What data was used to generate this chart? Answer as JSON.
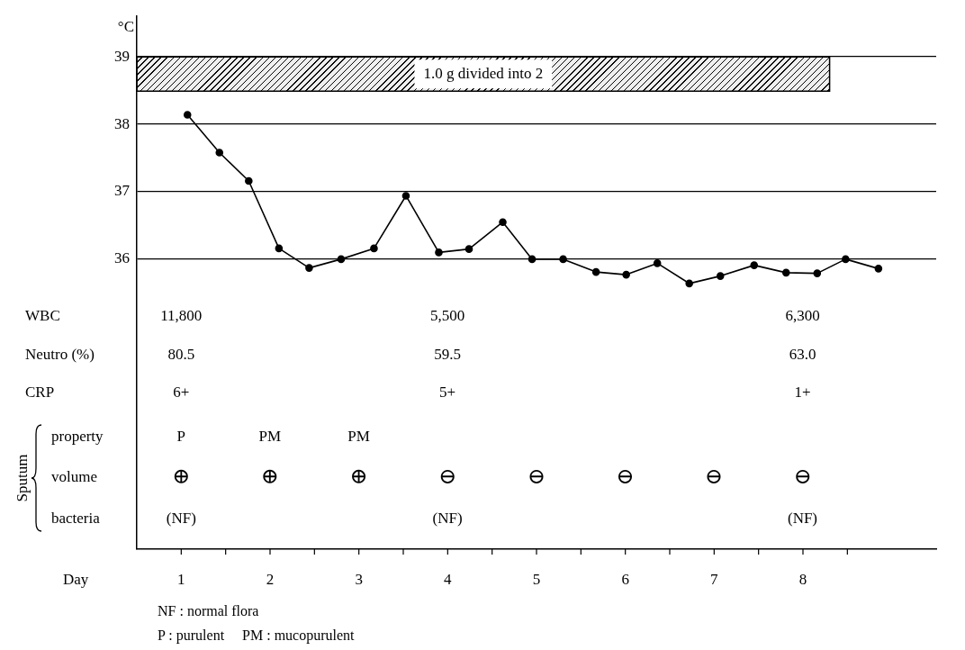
{
  "chart_data": {
    "type": "line",
    "xlabel": "Day",
    "ylabel": "°C",
    "x": [
      1.07,
      1.43,
      1.76,
      2.1,
      2.44,
      2.8,
      3.17,
      3.53,
      3.9,
      4.24,
      4.62,
      4.95,
      5.3,
      5.67,
      6.01,
      6.36,
      6.72,
      7.07,
      7.45,
      7.81,
      8.16,
      8.48,
      8.85
    ],
    "series": [
      {
        "color": "#000000",
        "values": [
          38.14,
          37.58,
          37.16,
          36.16,
          35.87,
          36.0,
          36.16,
          36.94,
          36.1,
          36.15,
          36.55,
          36.0,
          36.0,
          35.81,
          35.77,
          35.94,
          35.64,
          35.75,
          35.91,
          35.8,
          35.79,
          36.0,
          35.86
        ]
      }
    ],
    "xlim": [
      0.5,
      9.5
    ],
    "xticks": [
      1,
      {
        "value": 1.5,
        "label": null
      },
      2,
      {
        "value": 2.5,
        "label": null
      },
      3,
      {
        "value": 3.5,
        "label": null
      },
      4,
      {
        "value": 4.5,
        "label": null
      },
      5,
      {
        "value": 5.5,
        "label": null
      },
      6,
      {
        "value": 6.5,
        "label": null
      },
      7,
      {
        "value": 7.5,
        "label": null
      },
      8,
      {
        "value": 8.5,
        "label": null
      }
    ],
    "ylim": [
      31.7,
      39.6
    ],
    "yticks": [
      36,
      37,
      38,
      39
    ],
    "grid": "y",
    "legend": false,
    "marker": "circle",
    "line_style": "solid",
    "bands": [
      {
        "axis": "x",
        "from": 0.5,
        "to": 8.3,
        "label": "1.0 g divided into 2"
      }
    ],
    "annotations": [
      "WBC",
      "Neutro (%)",
      "CRP",
      "Sputum",
      "property",
      "volume",
      "bacteria",
      "11,800",
      "5,500",
      "6,300",
      "80.5",
      "59.5",
      "63.0",
      "6+",
      "5+",
      "1+",
      "P",
      "PM",
      "PM",
      "⊕",
      "⊕",
      "⊕",
      "⊖",
      "⊖",
      "⊖",
      "⊖",
      "⊖",
      "(NF)",
      "(NF)",
      "(NF)",
      "NF : normal flora",
      "P : purulent     PM : mucopurulent"
    ]
  }
}
